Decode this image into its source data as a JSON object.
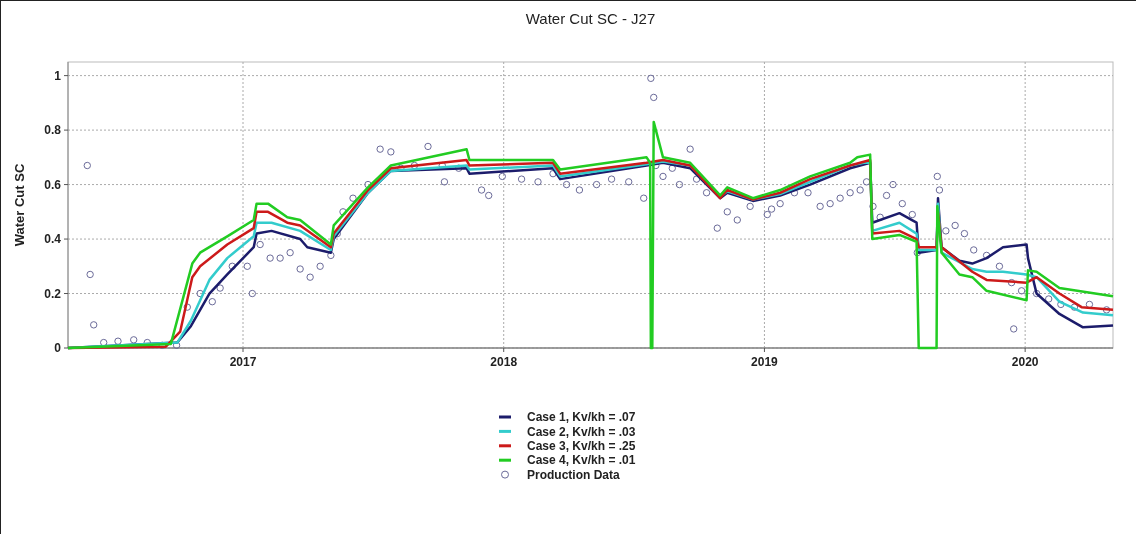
{
  "chart_data": {
    "type": "line",
    "title": "Water Cut SC - J27",
    "ylabel": "Water Cut SC",
    "xlim": [
      "2016-05-01",
      "2020-05-03"
    ],
    "xticks": [
      "2017",
      "2018",
      "2019",
      "2020"
    ],
    "ylim": [
      0,
      1.05
    ],
    "yticks": [
      0,
      0.2,
      0.4,
      0.6,
      0.8,
      1
    ],
    "grid": true,
    "legend": "bottom",
    "series": [
      {
        "name": "Case 1, Kv/kh = .07",
        "color": "#1c1c6b",
        "x": [
          "2016-05-01",
          "2016-10-01",
          "2016-10-20",
          "2016-11-15",
          "2016-12-10",
          "2017-01-16",
          "2017-01-20",
          "2017-02-10",
          "2017-03-22",
          "2017-04-01",
          "2017-05-04",
          "2017-05-08",
          "2017-06-25",
          "2017-07-27",
          "2017-11-10",
          "2017-11-14",
          "2018-03-11",
          "2018-03-21",
          "2018-07-20",
          "2018-08-12",
          "2018-09-19",
          "2018-10-31",
          "2018-11-10",
          "2018-12-16",
          "2019-01-23",
          "2019-03-06",
          "2019-05-01",
          "2019-05-29",
          "2019-06-01",
          "2019-07-09",
          "2019-08-02",
          "2019-08-05",
          "2019-08-30",
          "2019-09-01",
          "2019-09-06",
          "2019-10-01",
          "2019-10-19",
          "2019-11-08",
          "2019-12-01",
          "2020-01-03",
          "2020-01-05",
          "2020-01-17",
          "2020-02-18",
          "2020-03-22",
          "2020-05-03"
        ],
        "values": [
          0,
          0.02,
          0.08,
          0.2,
          0.27,
          0.37,
          0.42,
          0.43,
          0.4,
          0.37,
          0.35,
          0.4,
          0.57,
          0.65,
          0.66,
          0.64,
          0.66,
          0.62,
          0.67,
          0.68,
          0.66,
          0.55,
          0.57,
          0.54,
          0.56,
          0.6,
          0.66,
          0.68,
          0.46,
          0.495,
          0.46,
          0.35,
          0.36,
          0.55,
          0.37,
          0.32,
          0.31,
          0.33,
          0.37,
          0.38,
          0.33,
          0.2,
          0.125,
          0.076,
          0.083
        ]
      },
      {
        "name": "Case 2, Kv/kh = .03",
        "color": "#33cccc",
        "x": [
          "2016-05-01",
          "2016-10-01",
          "2016-10-20",
          "2016-11-15",
          "2016-12-10",
          "2017-01-16",
          "2017-01-20",
          "2017-02-10",
          "2017-03-22",
          "2017-05-04",
          "2017-05-08",
          "2017-06-25",
          "2017-07-27",
          "2017-11-10",
          "2017-11-14",
          "2018-03-11",
          "2018-03-21",
          "2018-07-20",
          "2018-08-12",
          "2018-09-19",
          "2018-10-31",
          "2018-11-10",
          "2018-12-16",
          "2019-01-23",
          "2019-03-06",
          "2019-05-01",
          "2019-05-29",
          "2019-06-01",
          "2019-07-09",
          "2019-08-02",
          "2019-08-05",
          "2019-08-30",
          "2019-09-01",
          "2019-09-06",
          "2019-10-19",
          "2019-11-08",
          "2019-12-01",
          "2020-01-03",
          "2020-01-17",
          "2020-02-18",
          "2020-03-22",
          "2020-05-03"
        ],
        "values": [
          0,
          0.02,
          0.1,
          0.25,
          0.33,
          0.41,
          0.46,
          0.46,
          0.43,
          0.36,
          0.41,
          0.57,
          0.65,
          0.67,
          0.655,
          0.67,
          0.63,
          0.675,
          0.685,
          0.67,
          0.555,
          0.575,
          0.545,
          0.565,
          0.61,
          0.67,
          0.685,
          0.43,
          0.46,
          0.42,
          0.36,
          0.36,
          0.53,
          0.35,
          0.29,
          0.28,
          0.28,
          0.27,
          0.26,
          0.17,
          0.13,
          0.12
        ]
      },
      {
        "name": "Case 3, Kv/kh = .25",
        "color": "#cc1a1a",
        "x": [
          "2016-05-01",
          "2016-09-15",
          "2016-10-05",
          "2016-10-22",
          "2016-11-02",
          "2016-12-10",
          "2017-01-16",
          "2017-01-20",
          "2017-02-05",
          "2017-03-04",
          "2017-03-22",
          "2017-05-04",
          "2017-05-08",
          "2017-06-25",
          "2017-07-27",
          "2017-11-10",
          "2017-11-14",
          "2018-03-11",
          "2018-03-21",
          "2018-07-20",
          "2018-08-12",
          "2018-09-19",
          "2018-10-31",
          "2018-11-10",
          "2018-12-16",
          "2019-01-23",
          "2019-03-06",
          "2019-05-01",
          "2019-05-29",
          "2019-06-01",
          "2019-07-09",
          "2019-08-02",
          "2019-08-05",
          "2019-08-30",
          "2019-09-01",
          "2019-09-06",
          "2019-10-19",
          "2019-11-08",
          "2020-01-03",
          "2020-01-17",
          "2020-02-18",
          "2020-03-20",
          "2020-05-03"
        ],
        "values": [
          0,
          0.005,
          0.06,
          0.26,
          0.3,
          0.38,
          0.44,
          0.5,
          0.5,
          0.46,
          0.45,
          0.37,
          0.42,
          0.58,
          0.66,
          0.69,
          0.67,
          0.68,
          0.64,
          0.68,
          0.69,
          0.67,
          0.55,
          0.58,
          0.545,
          0.57,
          0.62,
          0.67,
          0.69,
          0.42,
          0.43,
          0.4,
          0.37,
          0.37,
          0.5,
          0.37,
          0.28,
          0.25,
          0.24,
          0.26,
          0.2,
          0.15,
          0.14
        ]
      },
      {
        "name": "Case 4, Kv/kh = .01",
        "color": "#22cc22",
        "x": [
          "2016-05-01",
          "2016-09-22",
          "2016-10-22",
          "2016-11-02",
          "2016-12-10",
          "2017-01-16",
          "2017-01-20",
          "2017-02-05",
          "2017-03-04",
          "2017-03-22",
          "2017-05-04",
          "2017-05-08",
          "2017-06-25",
          "2017-07-27",
          "2017-11-10",
          "2017-11-14",
          "2018-03-11",
          "2018-03-21",
          "2018-07-20",
          "2018-07-25",
          "2018-07-26",
          "2018-07-28",
          "2018-07-30",
          "2018-08-12",
          "2018-09-19",
          "2018-10-31",
          "2018-11-10",
          "2018-12-16",
          "2019-01-23",
          "2019-03-06",
          "2019-05-01",
          "2019-05-11",
          "2019-05-29",
          "2019-06-01",
          "2019-07-09",
          "2019-08-02",
          "2019-08-05",
          "2019-08-30",
          "2019-08-31",
          "2019-09-06",
          "2019-10-01",
          "2019-10-19",
          "2019-11-08",
          "2020-01-03",
          "2020-01-05",
          "2020-01-17",
          "2020-02-18",
          "2020-05-03"
        ],
        "values": [
          0,
          0.015,
          0.31,
          0.35,
          0.41,
          0.47,
          0.53,
          0.53,
          0.48,
          0.47,
          0.38,
          0.45,
          0.59,
          0.67,
          0.73,
          0.69,
          0.69,
          0.655,
          0.7,
          0.68,
          0,
          0,
          0.83,
          0.7,
          0.68,
          0.56,
          0.59,
          0.55,
          0.58,
          0.63,
          0.68,
          0.7,
          0.71,
          0.4,
          0.415,
          0.39,
          0,
          0,
          0.52,
          0.35,
          0.27,
          0.26,
          0.21,
          0.175,
          0.285,
          0.28,
          0.22,
          0.19
        ]
      },
      {
        "name": "Production Data",
        "type": "scatter",
        "marker": "circle",
        "color": "#6b6b99",
        "x": [
          "2016-05-28",
          "2016-06-01",
          "2016-06-06",
          "2016-06-20",
          "2016-07-10",
          "2016-08-01",
          "2016-08-20",
          "2016-09-10",
          "2016-09-30",
          "2016-10-15",
          "2016-11-02",
          "2016-11-19",
          "2016-11-30",
          "2016-12-17",
          "2017-01-07",
          "2017-01-14",
          "2017-01-25",
          "2017-02-08",
          "2017-02-22",
          "2017-03-08",
          "2017-03-22",
          "2017-04-05",
          "2017-04-19",
          "2017-05-04",
          "2017-05-13",
          "2017-05-21",
          "2017-06-04",
          "2017-06-25",
          "2017-07-12",
          "2017-07-27",
          "2017-08-10",
          "2017-08-29",
          "2017-09-17",
          "2017-10-07",
          "2017-10-10",
          "2017-10-30",
          "2017-12-01",
          "2017-12-11",
          "2017-12-30",
          "2018-01-26",
          "2018-02-18",
          "2018-03-11",
          "2018-03-30",
          "2018-04-17",
          "2018-05-11",
          "2018-06-01",
          "2018-06-25",
          "2018-07-16",
          "2018-07-26",
          "2018-07-30",
          "2018-08-02",
          "2018-08-12",
          "2018-08-25",
          "2018-09-04",
          "2018-09-19",
          "2018-09-28",
          "2018-10-12",
          "2018-10-27",
          "2018-11-10",
          "2018-11-24",
          "2018-12-12",
          "2019-01-05",
          "2019-01-11",
          "2019-01-23",
          "2019-02-12",
          "2019-03-03",
          "2019-03-20",
          "2019-04-03",
          "2019-04-17",
          "2019-05-01",
          "2019-05-15",
          "2019-05-24",
          "2019-06-02",
          "2019-06-12",
          "2019-06-21",
          "2019-06-30",
          "2019-07-13",
          "2019-07-27",
          "2019-08-03",
          "2019-08-31",
          "2019-09-03",
          "2019-09-12",
          "2019-09-25",
          "2019-10-08",
          "2019-10-21",
          "2019-11-08",
          "2019-11-26",
          "2019-12-13",
          "2019-12-16",
          "2019-12-27",
          "2020-01-17",
          "2020-02-03",
          "2020-02-20",
          "2020-03-10",
          "2020-03-31",
          "2020-04-24"
        ],
        "values": [
          0.67,
          0.27,
          0.085,
          0.02,
          0.025,
          0.03,
          0.02,
          0.01,
          0.01,
          0.15,
          0.2,
          0.17,
          0.22,
          0.3,
          0.3,
          0.2,
          0.38,
          0.33,
          0.33,
          0.35,
          0.29,
          0.26,
          0.3,
          0.34,
          0.42,
          0.5,
          0.55,
          0.6,
          0.73,
          0.72,
          0.66,
          0.67,
          0.74,
          0.67,
          0.61,
          0.66,
          0.58,
          0.56,
          0.63,
          0.62,
          0.61,
          0.64,
          0.6,
          0.58,
          0.6,
          0.62,
          0.61,
          0.55,
          0.99,
          0.92,
          0.67,
          0.63,
          0.66,
          0.6,
          0.73,
          0.62,
          0.57,
          0.44,
          0.5,
          0.47,
          0.52,
          0.49,
          0.51,
          0.53,
          0.57,
          0.57,
          0.52,
          0.53,
          0.55,
          0.57,
          0.58,
          0.61,
          0.52,
          0.48,
          0.56,
          0.6,
          0.53,
          0.49,
          0.35,
          0.63,
          0.58,
          0.43,
          0.45,
          0.42,
          0.36,
          0.34,
          0.3,
          0.24,
          0.07,
          0.21,
          0.2,
          0.18,
          0.16,
          0.15,
          0.16,
          0.14
        ]
      }
    ]
  }
}
